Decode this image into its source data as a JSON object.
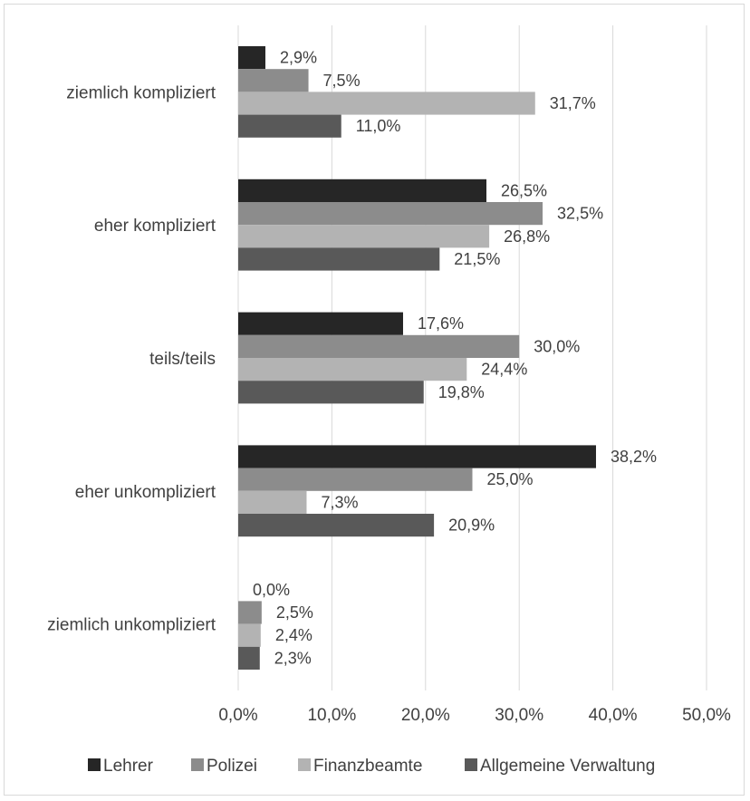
{
  "chart_data": {
    "type": "bar",
    "orientation": "horizontal",
    "categories": [
      "ziemlich kompliziert",
      "eher kompliziert",
      "teils/teils",
      "eher unkompliziert",
      "ziemlich unkompliziert"
    ],
    "series": [
      {
        "name": "Lehrer",
        "color": "#262626",
        "values": [
          2.9,
          26.5,
          17.6,
          38.2,
          0.0
        ],
        "labels": [
          "2,9%",
          "26,5%",
          "17,6%",
          "38,2%",
          "0,0%"
        ]
      },
      {
        "name": "Polizei",
        "color": "#8c8c8c",
        "values": [
          7.5,
          32.5,
          30.0,
          25.0,
          2.5
        ],
        "labels": [
          "7,5%",
          "32,5%",
          "30,0%",
          "25,0%",
          "2,5%"
        ]
      },
      {
        "name": "Finanzbeamte",
        "color": "#b3b3b3",
        "values": [
          31.7,
          26.8,
          24.4,
          7.3,
          2.4
        ],
        "labels": [
          "31,7%",
          "26,8%",
          "24,4%",
          "7,3%",
          "2,4%"
        ]
      },
      {
        "name": "Allgemeine Verwaltung",
        "color": "#595959",
        "values": [
          11.0,
          21.5,
          19.8,
          20.9,
          2.3
        ],
        "labels": [
          "11,0%",
          "21,5%",
          "19,8%",
          "20,9%",
          "2,3%"
        ]
      }
    ],
    "xticks": [
      0,
      10,
      20,
      30,
      40,
      50
    ],
    "xtick_labels": [
      "0,0%",
      "10,0%",
      "20,0%",
      "30,0%",
      "40,0%",
      "50,0%"
    ],
    "xlim": [
      0,
      50
    ],
    "grid": "vertical",
    "legend": "bottom",
    "gridline_color": "#d9d9d9"
  }
}
